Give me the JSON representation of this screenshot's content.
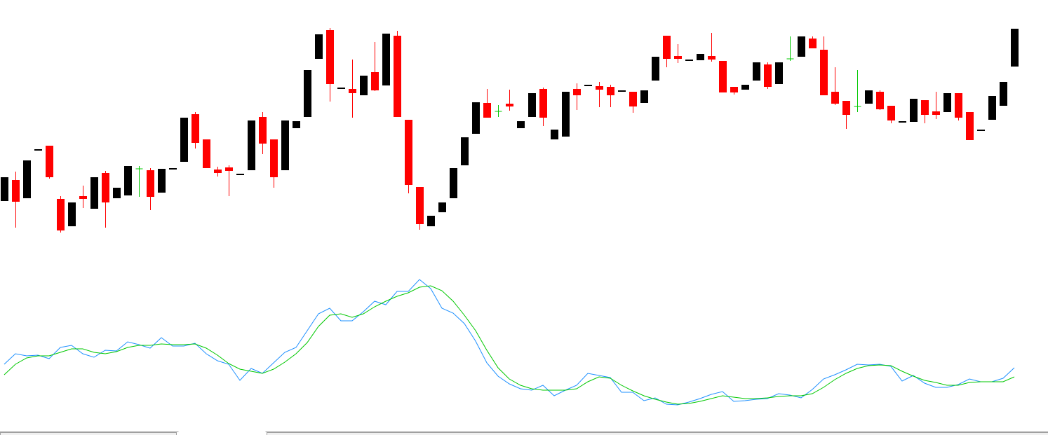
{
  "chart_data": [
    {
      "type": "candlestick",
      "open": [
        113,
        143,
        117,
        185,
        192,
        116,
        77,
        120,
        102,
        153,
        117,
        121,
        159,
        157,
        125,
        158,
        169,
        237,
        201,
        158,
        161,
        150,
        157,
        233,
        201,
        157,
        217,
        233,
        316,
        357,
        273,
        273,
        264,
        297,
        278,
        349,
        229,
        133,
        77,
        97,
        117,
        164,
        209,
        253,
        241,
        252,
        217,
        233,
        273,
        201,
        205,
        273,
        277,
        277,
        276,
        269,
        269,
        253,
        285,
        349,
        320,
        313,
        314,
        320,
        313,
        276,
        272,
        285,
        308,
        280,
        316,
        319,
        345,
        329,
        269,
        256,
        248,
        252,
        269,
        249,
        225,
        226,
        257,
        241,
        240,
        267,
        240,
        213,
        229,
        249,
        305
      ],
      "high": [
        147,
        155,
        171,
        187,
        192,
        120,
        111,
        135,
        147,
        156,
        132,
        163,
        163,
        160,
        159,
        160,
        232,
        240,
        201,
        162,
        164,
        152,
        228,
        240,
        201,
        228,
        227,
        300,
        351,
        360,
        275,
        315,
        292,
        340,
        352,
        356,
        229,
        133,
        92,
        111,
        160,
        204,
        254,
        273,
        250,
        272,
        227,
        267,
        275,
        215,
        269,
        281,
        279,
        283,
        279,
        271,
        269,
        271,
        319,
        349,
        337,
        315,
        323,
        353,
        313,
        276,
        279,
        311,
        311,
        311,
        348,
        348,
        348,
        348,
        304,
        256,
        300,
        271,
        271,
        249,
        227,
        259,
        257,
        269,
        267,
        267,
        240,
        215,
        263,
        283,
        359
      ],
      "low": [
        113,
        75,
        117,
        185,
        145,
        68,
        77,
        103,
        102,
        75,
        117,
        121,
        119,
        100,
        125,
        158,
        169,
        188,
        160,
        148,
        120,
        150,
        157,
        180,
        132,
        157,
        217,
        233,
        316,
        255,
        273,
        232,
        264,
        270,
        278,
        233,
        124,
        72,
        77,
        97,
        117,
        164,
        209,
        232,
        233,
        242,
        217,
        233,
        220,
        201,
        205,
        243,
        277,
        247,
        247,
        269,
        239,
        253,
        285,
        304,
        310,
        313,
        314,
        312,
        268,
        265,
        272,
        285,
        273,
        280,
        313,
        319,
        331,
        264,
        250,
        216,
        240,
        252,
        243,
        224,
        225,
        226,
        224,
        230,
        240,
        228,
        200,
        213,
        229,
        249,
        305
      ],
      "close": [
        147,
        112,
        171,
        187,
        147,
        71,
        111,
        116,
        147,
        111,
        132,
        163,
        159,
        119,
        159,
        160,
        232,
        196,
        160,
        153,
        156,
        152,
        228,
        195,
        147,
        228,
        227,
        300,
        351,
        280,
        275,
        267,
        292,
        271,
        352,
        233,
        136,
        80,
        92,
        111,
        160,
        204,
        254,
        232,
        241,
        248,
        227,
        267,
        232,
        215,
        269,
        264,
        279,
        272,
        264,
        271,
        248,
        271,
        319,
        316,
        316,
        315,
        323,
        315,
        268,
        268,
        279,
        311,
        276,
        311,
        316,
        348,
        331,
        264,
        252,
        236,
        248,
        271,
        244,
        228,
        227,
        259,
        236,
        236,
        267,
        232,
        200,
        215,
        263,
        283,
        359
      ],
      "up_color": "#000000",
      "down_color": "#ff0000",
      "doji_color": "#00c800",
      "ylim": [
        60,
        400
      ]
    },
    {
      "type": "line",
      "series": [
        {
          "color": "#1e90ff",
          "values": [
            100,
            115,
            112,
            113,
            108,
            124,
            127,
            115,
            110,
            120,
            119,
            132,
            128,
            123,
            138,
            126,
            126,
            130,
            115,
            105,
            100,
            77,
            94,
            87,
            102,
            117,
            124,
            148,
            172,
            180,
            162,
            162,
            175,
            190,
            185,
            204,
            204,
            221,
            208,
            180,
            173,
            158,
            133,
            102,
            83,
            72,
            65,
            63,
            70,
            55,
            63,
            70,
            87,
            84,
            81,
            60,
            60,
            48,
            52,
            43,
            42,
            46,
            51,
            57,
            61,
            47,
            48,
            50,
            51,
            58,
            56,
            52,
            64,
            79,
            85,
            92,
            100,
            99,
            100,
            97,
            76,
            84,
            73,
            67,
            67,
            71,
            79,
            75,
            75,
            80,
            95
          ]
        },
        {
          "color": "#00c800",
          "values": [
            85,
            100,
            109,
            112,
            112,
            117,
            122,
            122,
            117,
            115,
            118,
            124,
            127,
            127,
            129,
            128,
            128,
            129,
            123,
            113,
            101,
            93,
            90,
            87,
            93,
            103,
            115,
            131,
            154,
            170,
            172,
            167,
            172,
            182,
            190,
            197,
            202,
            210,
            212,
            205,
            190,
            170,
            148,
            120,
            95,
            79,
            70,
            65,
            63,
            63,
            63,
            65,
            75,
            82,
            80,
            70,
            62,
            55,
            50,
            46,
            43,
            44,
            47,
            51,
            55,
            53,
            51,
            51,
            52,
            54,
            55,
            55,
            58,
            67,
            78,
            87,
            94,
            98,
            99,
            98,
            90,
            83,
            77,
            74,
            70,
            70,
            74,
            75,
            75,
            75,
            82
          ]
        }
      ],
      "ylim": [
        30,
        230
      ]
    }
  ]
}
